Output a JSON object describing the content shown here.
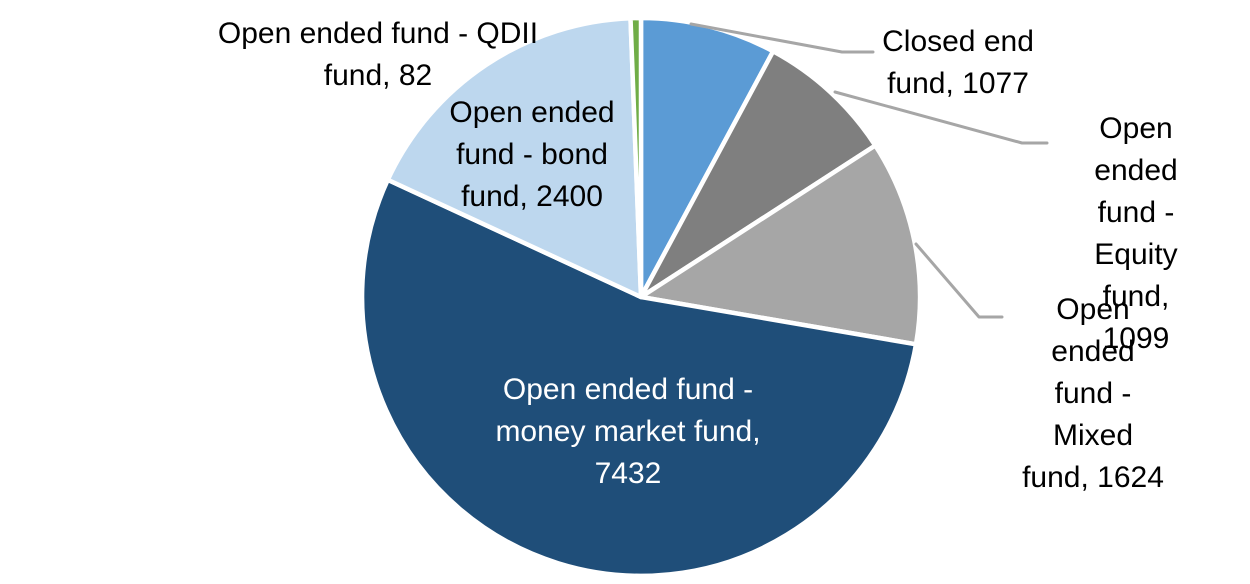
{
  "chart_data": {
    "type": "pie",
    "title": "",
    "legend_position": "none",
    "start_angle_deg": 0,
    "direction": "clockwise",
    "background_color": "#FFFFFF",
    "slice_border_color": "#FFFFFF",
    "leader_line_color": "#A6A6A6",
    "slices": [
      {
        "label": "Closed end fund",
        "value": 1077,
        "color": "#5B9BD5",
        "data_label": "Closed end\nfund, 1077",
        "data_label_position": "outside",
        "data_label_color": "#000000",
        "leader_line": true
      },
      {
        "label": "Open ended fund - Equity fund",
        "value": 1099,
        "color": "#7F7F7F",
        "data_label": "Open ended\nfund - Equity\nfund, 1099",
        "data_label_position": "outside",
        "data_label_color": "#000000",
        "leader_line": true
      },
      {
        "label": "Open ended fund - Mixed fund",
        "value": 1624,
        "color": "#A6A6A6",
        "data_label": "Open ended\nfund - Mixed\nfund, 1624",
        "data_label_position": "outside",
        "data_label_color": "#000000",
        "leader_line": true
      },
      {
        "label": "Open ended fund - money market fund",
        "value": 7432,
        "color": "#1F4E79",
        "data_label": "Open ended fund -\nmoney market fund,\n7432",
        "data_label_position": "inside",
        "data_label_color": "#FFFFFF",
        "leader_line": false
      },
      {
        "label": "Open ended fund - bond fund",
        "value": 2400,
        "color": "#BDD7EE",
        "data_label": "Open ended\nfund - bond\nfund, 2400",
        "data_label_position": "inside",
        "data_label_color": "#000000",
        "leader_line": false
      },
      {
        "label": "Open ended fund - QDII fund",
        "value": 82,
        "color": "#70AD47",
        "data_label": "Open ended fund - QDII\nfund, 82",
        "data_label_position": "outside",
        "data_label_color": "#000000",
        "leader_line": false
      }
    ]
  }
}
